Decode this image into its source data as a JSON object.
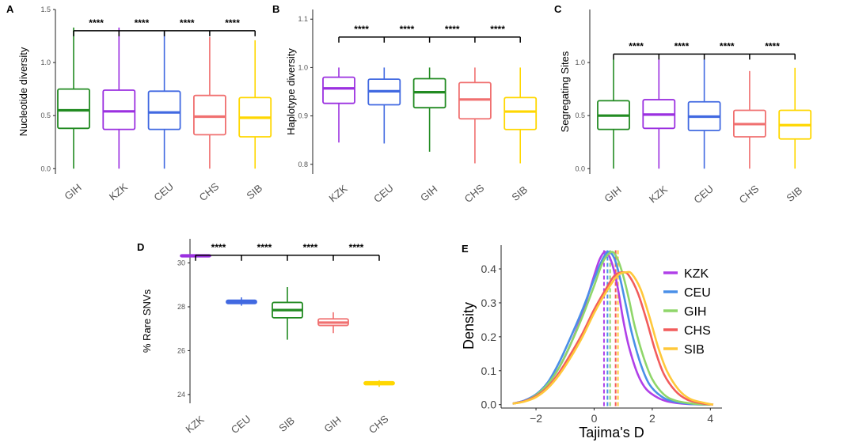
{
  "chart_data": [
    {
      "panel": "A",
      "type": "box",
      "ylabel": "Nucleotide diversity",
      "ylim": [
        -0.05,
        1.5
      ],
      "yticks": [
        "0.0",
        "0.5",
        "1.0",
        "1.5"
      ],
      "categories": [
        "GIH",
        "KZK",
        "CEU",
        "CHS",
        "SIB"
      ],
      "colors": [
        "#228B22",
        "#9B30E0",
        "#4169E1",
        "#F07070",
        "#FFD700"
      ],
      "boxes": [
        {
          "min": 0.0,
          "q1": 0.38,
          "median": 0.55,
          "q3": 0.75,
          "max": 1.33
        },
        {
          "min": 0.0,
          "q1": 0.37,
          "median": 0.54,
          "q3": 0.74,
          "max": 1.33
        },
        {
          "min": 0.0,
          "q1": 0.37,
          "median": 0.53,
          "q3": 0.73,
          "max": 1.29
        },
        {
          "min": 0.0,
          "q1": 0.32,
          "median": 0.49,
          "q3": 0.69,
          "max": 1.24
        },
        {
          "min": 0.0,
          "q1": 0.3,
          "median": 0.48,
          "q3": 0.67,
          "max": 1.21
        }
      ],
      "sig_y": 1.3,
      "sig_labels": [
        "****",
        "****",
        "****",
        "****"
      ]
    },
    {
      "panel": "B",
      "type": "box",
      "ylabel": "Haplotype diversity",
      "ylim": [
        0.78,
        1.12
      ],
      "yticks": [
        "0.8",
        "0.9",
        "1.0",
        "1.1"
      ],
      "categories": [
        "KZK",
        "CEU",
        "GIH",
        "CHS",
        "SIB"
      ],
      "colors": [
        "#9B30E0",
        "#4169E1",
        "#228B22",
        "#F07070",
        "#FFD700"
      ],
      "boxes": [
        {
          "min": 0.845,
          "q1": 0.926,
          "median": 0.957,
          "q3": 0.98,
          "max": 1.0
        },
        {
          "min": 0.843,
          "q1": 0.923,
          "median": 0.951,
          "q3": 0.976,
          "max": 1.0
        },
        {
          "min": 0.826,
          "q1": 0.917,
          "median": 0.949,
          "q3": 0.977,
          "max": 1.0
        },
        {
          "min": 0.802,
          "q1": 0.894,
          "median": 0.934,
          "q3": 0.969,
          "max": 1.0
        },
        {
          "min": 0.802,
          "q1": 0.872,
          "median": 0.909,
          "q3": 0.938,
          "max": 1.0
        }
      ],
      "sig_y": 1.063,
      "sig_labels": [
        "****",
        "****",
        "****",
        "****"
      ]
    },
    {
      "panel": "C",
      "type": "box",
      "ylabel": "Segregating Sites",
      "ylim": [
        -0.05,
        1.5
      ],
      "yticks": [
        "0.0",
        "0.5",
        "1.0"
      ],
      "categories": [
        "GIH",
        "KZK",
        "CEU",
        "CHS",
        "SIB"
      ],
      "colors": [
        "#228B22",
        "#9B30E0",
        "#4169E1",
        "#F07070",
        "#FFD700"
      ],
      "boxes": [
        {
          "min": 0.0,
          "q1": 0.37,
          "median": 0.5,
          "q3": 0.64,
          "max": 1.03
        },
        {
          "min": 0.0,
          "q1": 0.38,
          "median": 0.51,
          "q3": 0.65,
          "max": 1.03
        },
        {
          "min": 0.0,
          "q1": 0.36,
          "median": 0.49,
          "q3": 0.63,
          "max": 1.03
        },
        {
          "min": 0.0,
          "q1": 0.3,
          "median": 0.42,
          "q3": 0.55,
          "max": 0.92
        },
        {
          "min": 0.0,
          "q1": 0.28,
          "median": 0.41,
          "q3": 0.55,
          "max": 0.95
        }
      ],
      "sig_y": 1.08,
      "sig_labels": [
        "****",
        "****",
        "****",
        "****"
      ]
    },
    {
      "panel": "D",
      "type": "box",
      "ylabel": "% Rare SNVs",
      "ylim": [
        23.6,
        31.1
      ],
      "yticks": [
        "24",
        "26",
        "28",
        "30"
      ],
      "categories": [
        "KZK",
        "CEU",
        "SIB",
        "GIH",
        "CHS"
      ],
      "colors": [
        "#9B30E0",
        "#4169E1",
        "#228B22",
        "#F07070",
        "#FFD700"
      ],
      "boxes": [
        {
          "min": 30.25,
          "q1": 30.28,
          "median": 30.33,
          "q3": 30.37,
          "max": 30.4
        },
        {
          "min": 28.05,
          "q1": 28.15,
          "median": 28.22,
          "q3": 28.3,
          "max": 28.43
        },
        {
          "min": 26.5,
          "q1": 27.5,
          "median": 27.85,
          "q3": 28.2,
          "max": 28.9
        },
        {
          "min": 26.8,
          "q1": 27.15,
          "median": 27.28,
          "q3": 27.45,
          "max": 27.75
        },
        {
          "min": 24.35,
          "q1": 24.45,
          "median": 24.52,
          "q3": 24.58,
          "max": 24.65
        }
      ],
      "sig_y": 30.35,
      "sig_labels": [
        "****",
        "****",
        "****",
        "****"
      ]
    },
    {
      "panel": "E",
      "type": "line",
      "xlabel": "Tajima's D",
      "ylabel": "Density",
      "xlim": [
        -3.2,
        4.4
      ],
      "ylim": [
        -0.01,
        0.47
      ],
      "xticks": [
        -2,
        0,
        2,
        4
      ],
      "xtick_labels": [
        "−2",
        "0",
        "2",
        "4"
      ],
      "yticks": [
        0.0,
        0.1,
        0.2,
        0.3,
        0.4
      ],
      "ytick_labels": [
        "0.0",
        "0.1",
        "0.2",
        "0.3",
        "0.4"
      ],
      "series": [
        {
          "name": "KZK",
          "color": "#B040E8",
          "mean": 0.34,
          "points": [
            [
              -2.8,
              0.003
            ],
            [
              -2.4,
              0.012
            ],
            [
              -2.0,
              0.03
            ],
            [
              -1.6,
              0.06
            ],
            [
              -1.2,
              0.11
            ],
            [
              -0.8,
              0.18
            ],
            [
              -0.4,
              0.27
            ],
            [
              0.0,
              0.38
            ],
            [
              0.2,
              0.43
            ],
            [
              0.4,
              0.45
            ],
            [
              0.6,
              0.42
            ],
            [
              0.8,
              0.35
            ],
            [
              1.0,
              0.25
            ],
            [
              1.2,
              0.17
            ],
            [
              1.5,
              0.09
            ],
            [
              1.8,
              0.045
            ],
            [
              2.2,
              0.02
            ],
            [
              2.6,
              0.008
            ],
            [
              3.2,
              0.002
            ],
            [
              4.0,
              0.0
            ]
          ]
        },
        {
          "name": "CEU",
          "color": "#4A8FE8",
          "mean": 0.46,
          "points": [
            [
              -2.8,
              0.003
            ],
            [
              -2.4,
              0.012
            ],
            [
              -2.0,
              0.03
            ],
            [
              -1.6,
              0.065
            ],
            [
              -1.2,
              0.125
            ],
            [
              -0.8,
              0.2
            ],
            [
              -0.4,
              0.28
            ],
            [
              0.0,
              0.37
            ],
            [
              0.3,
              0.43
            ],
            [
              0.5,
              0.45
            ],
            [
              0.7,
              0.43
            ],
            [
              0.9,
              0.37
            ],
            [
              1.1,
              0.29
            ],
            [
              1.3,
              0.21
            ],
            [
              1.6,
              0.12
            ],
            [
              1.9,
              0.06
            ],
            [
              2.3,
              0.025
            ],
            [
              2.7,
              0.01
            ],
            [
              3.3,
              0.002
            ],
            [
              4.0,
              0.0
            ]
          ]
        },
        {
          "name": "GIH",
          "color": "#8FD66A",
          "mean": 0.55,
          "points": [
            [
              -2.8,
              0.003
            ],
            [
              -2.4,
              0.01
            ],
            [
              -2.0,
              0.028
            ],
            [
              -1.6,
              0.06
            ],
            [
              -1.2,
              0.11
            ],
            [
              -0.8,
              0.18
            ],
            [
              -0.4,
              0.26
            ],
            [
              0.0,
              0.35
            ],
            [
              0.3,
              0.42
            ],
            [
              0.6,
              0.45
            ],
            [
              0.8,
              0.43
            ],
            [
              1.0,
              0.38
            ],
            [
              1.2,
              0.31
            ],
            [
              1.4,
              0.23
            ],
            [
              1.7,
              0.14
            ],
            [
              2.0,
              0.075
            ],
            [
              2.4,
              0.03
            ],
            [
              2.8,
              0.012
            ],
            [
              3.4,
              0.003
            ],
            [
              4.0,
              0.0
            ]
          ]
        },
        {
          "name": "CHS",
          "color": "#F25C5C",
          "mean": 0.74,
          "points": [
            [
              -2.8,
              0.003
            ],
            [
              -2.4,
              0.01
            ],
            [
              -2.0,
              0.025
            ],
            [
              -1.6,
              0.052
            ],
            [
              -1.2,
              0.095
            ],
            [
              -0.8,
              0.15
            ],
            [
              -0.4,
              0.21
            ],
            [
              0.0,
              0.28
            ],
            [
              0.4,
              0.34
            ],
            [
              0.7,
              0.38
            ],
            [
              1.0,
              0.39
            ],
            [
              1.2,
              0.38
            ],
            [
              1.5,
              0.33
            ],
            [
              1.8,
              0.25
            ],
            [
              2.1,
              0.16
            ],
            [
              2.4,
              0.09
            ],
            [
              2.8,
              0.04
            ],
            [
              3.2,
              0.015
            ],
            [
              3.7,
              0.004
            ],
            [
              4.1,
              0.0
            ]
          ]
        },
        {
          "name": "SIB",
          "color": "#FFC83A",
          "mean": 0.82,
          "points": [
            [
              -2.8,
              0.003
            ],
            [
              -2.4,
              0.009
            ],
            [
              -2.0,
              0.022
            ],
            [
              -1.6,
              0.048
            ],
            [
              -1.2,
              0.088
            ],
            [
              -0.8,
              0.14
            ],
            [
              -0.4,
              0.2
            ],
            [
              0.0,
              0.27
            ],
            [
              0.4,
              0.33
            ],
            [
              0.8,
              0.38
            ],
            [
              1.1,
              0.39
            ],
            [
              1.3,
              0.385
            ],
            [
              1.6,
              0.34
            ],
            [
              1.9,
              0.26
            ],
            [
              2.2,
              0.17
            ],
            [
              2.5,
              0.1
            ],
            [
              2.9,
              0.045
            ],
            [
              3.3,
              0.017
            ],
            [
              3.8,
              0.005
            ],
            [
              4.1,
              0.0
            ]
          ]
        }
      ]
    }
  ]
}
